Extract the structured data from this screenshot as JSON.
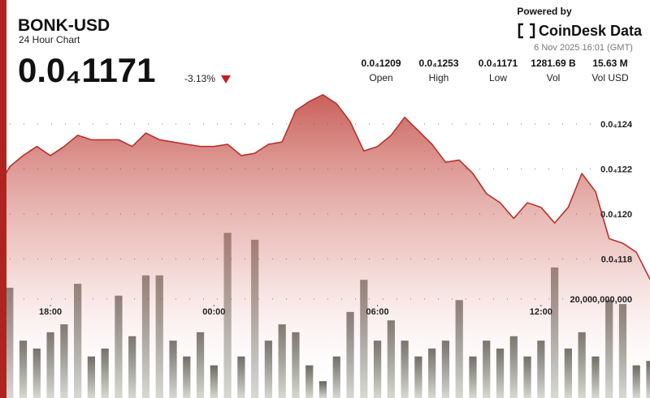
{
  "header": {
    "symbol": "BONK-USD",
    "subtitle": "24 Hour Chart",
    "price": "0.0₄1171",
    "change": "-3.13%"
  },
  "stats": [
    {
      "value": "0.0₄1209",
      "label": "Open"
    },
    {
      "value": "0.0₄1253",
      "label": "High"
    },
    {
      "value": "0.0₄1171",
      "label": "Low"
    },
    {
      "value": "1281.69 B",
      "label": "Vol"
    },
    {
      "value": "15.63 M",
      "label": "Vol USD"
    }
  ],
  "branding": {
    "powered_by": "Powered by",
    "name": "CoinDesk Data",
    "timestamp": "6 Nov 2025 16:01 (GMT)"
  },
  "chart_data": {
    "type": "area",
    "x": [
      0,
      0.5,
      1,
      1.5,
      2,
      2.5,
      3,
      3.5,
      4,
      4.5,
      5,
      5.5,
      6,
      6.5,
      7,
      7.5,
      8,
      8.5,
      9,
      9.5,
      10,
      10.5,
      11,
      11.5,
      12,
      12.5,
      13,
      13.5,
      14,
      14.5,
      15,
      15.5,
      16,
      16.5,
      17,
      17.5,
      18,
      18.5,
      19,
      19.5,
      20,
      20.5,
      21,
      21.5,
      22,
      22.5,
      23,
      23.5,
      24
    ],
    "xlim": [
      0,
      24
    ],
    "xticks": [
      {
        "value": 2,
        "label": "18:00"
      },
      {
        "value": 8,
        "label": "00:00"
      },
      {
        "value": 14,
        "label": "06:00"
      },
      {
        "value": 20,
        "label": "12:00"
      }
    ],
    "ylim": [
      1.12e-05,
      1.26e-05
    ],
    "yticks": [
      {
        "value": 1.18e-05,
        "label": "0.0₄118"
      },
      {
        "value": 1.2e-05,
        "label": "0.0₄120"
      },
      {
        "value": 1.22e-05,
        "label": "0.0₄122"
      },
      {
        "value": 1.24e-05,
        "label": "0.0₄124"
      }
    ],
    "y2lim": [
      0,
      40000000000
    ],
    "y2ticks": [
      {
        "value": 20000000000,
        "label": "20,000,000,000"
      }
    ],
    "grid": true,
    "series": [
      {
        "type": "area",
        "color": "#b8322c",
        "values": [
          1.21e-05,
          1.221e-05,
          1.226e-05,
          1.23e-05,
          1.226e-05,
          1.23e-05,
          1.235e-05,
          1.233e-05,
          1.233e-05,
          1.233e-05,
          1.23e-05,
          1.236e-05,
          1.233e-05,
          1.232e-05,
          1.231e-05,
          1.23e-05,
          1.23e-05,
          1.231e-05,
          1.226e-05,
          1.227e-05,
          1.231e-05,
          1.232e-05,
          1.246e-05,
          1.25e-05,
          1.253e-05,
          1.249e-05,
          1.241e-05,
          1.228e-05,
          1.23e-05,
          1.235e-05,
          1.243e-05,
          1.237e-05,
          1.231e-05,
          1.223e-05,
          1.224e-05,
          1.218e-05,
          1.209e-05,
          1.205e-05,
          1.198e-05,
          1.205e-05,
          1.203e-05,
          1.196e-05,
          1.203e-05,
          1.218e-05,
          1.21e-05,
          1.189e-05,
          1.187e-05,
          1.183e-05,
          1.171e-05
        ]
      },
      {
        "type": "bar",
        "axis": "y2",
        "color": "#5e5e55",
        "values": [
          15700000000,
          22300000000,
          11600000000,
          10000000000,
          13300000000,
          14900000000,
          23100000000,
          8400000000,
          10000000000,
          20700000000,
          12500000000,
          24800000000,
          24800000000,
          11600000000,
          8400000000,
          13300000000,
          6600000000,
          33400000000,
          8400000000,
          32000000000,
          11600000000,
          14900000000,
          13300000000,
          6600000000,
          3400000000,
          8400000000,
          17400000000,
          23900000000,
          11600000000,
          15700000000,
          11600000000,
          8400000000,
          10000000000,
          11600000000,
          19800000000,
          8400000000,
          11600000000,
          10000000000,
          12500000000,
          8400000000,
          11600000000,
          26400000000,
          10000000000,
          13300000000,
          8400000000,
          19800000000,
          19000000000,
          6600000000,
          7500000000
        ]
      }
    ]
  }
}
